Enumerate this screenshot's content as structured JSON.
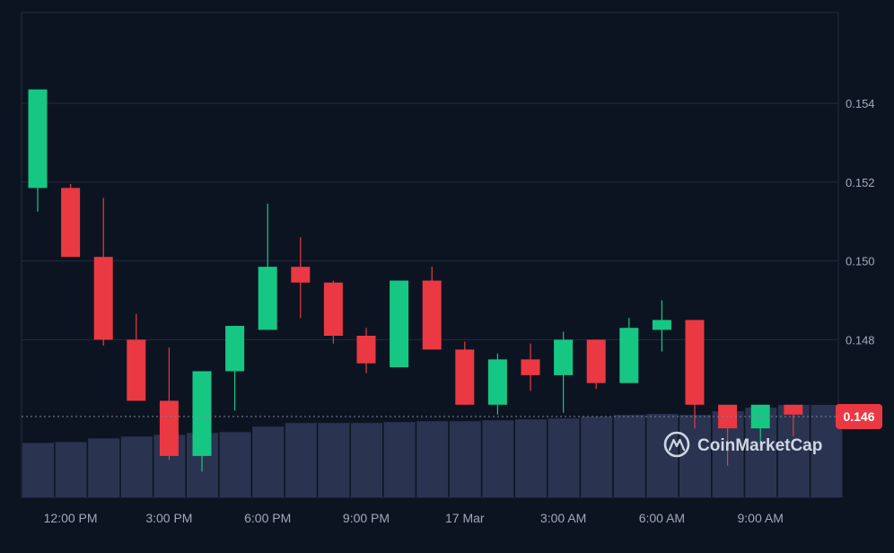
{
  "colors": {
    "background": "#0d1421",
    "grid": "#222b3d",
    "up": "#16c784",
    "down": "#ea3943",
    "volume": "#2a3350",
    "axis_text": "#a1a7bb",
    "price_tag_bg": "#ea3943",
    "price_tag_text": "#ffffff",
    "watermark": "#cfd6e4"
  },
  "watermark": {
    "text": "CoinMarketCap",
    "icon": "coinmarketcap-logo-icon"
  },
  "current_price": {
    "value": 0.14605,
    "label": "0.146"
  },
  "chart_data": {
    "type": "candlestick",
    "title": "",
    "xlabel": "",
    "ylabel": "",
    "ylim": [
      0.144,
      0.1563
    ],
    "y_ticks": [
      0.154,
      0.152,
      0.15,
      0.148
    ],
    "y_tick_labels": [
      "0.154",
      "0.152",
      "0.150",
      "0.148"
    ],
    "x_tick_labels": [
      "12:00 PM",
      "3:00 PM",
      "6:00 PM",
      "9:00 PM",
      "17 Mar",
      "3:00 AM",
      "6:00 AM",
      "9:00 AM"
    ],
    "x_tick_index": [
      1,
      4,
      7,
      10,
      13,
      16,
      19,
      22
    ],
    "grid": true,
    "candles": [
      {
        "open": 0.15185,
        "close": 0.15435,
        "high": 0.15435,
        "low": 0.15125
      },
      {
        "open": 0.15185,
        "close": 0.1501,
        "high": 0.15195,
        "low": 0.1501
      },
      {
        "open": 0.1501,
        "close": 0.148,
        "high": 0.1516,
        "low": 0.14785
      },
      {
        "open": 0.148,
        "close": 0.14645,
        "high": 0.14865,
        "low": 0.14645
      },
      {
        "open": 0.14645,
        "close": 0.14505,
        "high": 0.1478,
        "low": 0.14495
      },
      {
        "open": 0.14505,
        "close": 0.1472,
        "high": 0.1472,
        "low": 0.14465
      },
      {
        "open": 0.1472,
        "close": 0.14835,
        "high": 0.14835,
        "low": 0.1462
      },
      {
        "open": 0.14825,
        "close": 0.14985,
        "high": 0.15145,
        "low": 0.14825
      },
      {
        "open": 0.14985,
        "close": 0.14945,
        "high": 0.1506,
        "low": 0.14855
      },
      {
        "open": 0.14945,
        "close": 0.1481,
        "high": 0.1495,
        "low": 0.1479
      },
      {
        "open": 0.1481,
        "close": 0.1474,
        "high": 0.1483,
        "low": 0.14715
      },
      {
        "open": 0.1473,
        "close": 0.1495,
        "high": 0.1495,
        "low": 0.1473
      },
      {
        "open": 0.1495,
        "close": 0.14775,
        "high": 0.14985,
        "low": 0.14775
      },
      {
        "open": 0.14775,
        "close": 0.14635,
        "high": 0.14795,
        "low": 0.14635
      },
      {
        "open": 0.14635,
        "close": 0.1475,
        "high": 0.14765,
        "low": 0.1461
      },
      {
        "open": 0.1475,
        "close": 0.1471,
        "high": 0.1479,
        "low": 0.1467
      },
      {
        "open": 0.1471,
        "close": 0.148,
        "high": 0.1482,
        "low": 0.14615
      },
      {
        "open": 0.148,
        "close": 0.1469,
        "high": 0.148,
        "low": 0.14675
      },
      {
        "open": 0.1469,
        "close": 0.1483,
        "high": 0.14855,
        "low": 0.1469
      },
      {
        "open": 0.14825,
        "close": 0.1485,
        "high": 0.149,
        "low": 0.1477
      },
      {
        "open": 0.1485,
        "close": 0.14635,
        "high": 0.1485,
        "low": 0.14575
      },
      {
        "open": 0.14635,
        "close": 0.14575,
        "high": 0.14635,
        "low": 0.1448
      },
      {
        "open": 0.14575,
        "close": 0.14635,
        "high": 0.14635,
        "low": 0.1453
      },
      {
        "open": 0.14635,
        "close": 0.1461,
        "high": 0.14635,
        "low": 0.14555
      }
    ],
    "volume": {
      "ylim": [
        0,
        103
      ],
      "values": [
        60,
        61,
        65,
        67,
        69,
        71,
        72,
        78,
        82,
        82,
        82,
        83,
        84,
        84,
        85,
        86,
        87,
        89,
        91,
        92,
        91,
        95,
        99,
        102,
        102
      ]
    }
  }
}
